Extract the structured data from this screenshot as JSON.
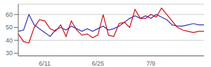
{
  "chart_data": {
    "type": "line",
    "categories": [
      null,
      null,
      null,
      null,
      null,
      "6/11",
      null,
      null,
      null,
      null,
      null,
      null,
      null,
      null,
      null,
      "6/25",
      null,
      null,
      null,
      null,
      null,
      null,
      null,
      null,
      null,
      "7/9",
      null,
      null,
      null,
      null,
      null,
      null,
      null,
      null,
      null,
      null
    ],
    "series": [
      {
        "color": "#3333bb",
        "values": [
          47,
          48,
          60,
          52,
          49,
          46,
          43,
          48,
          50,
          48,
          51,
          49,
          47,
          49,
          47,
          49,
          51,
          48,
          49,
          51,
          54,
          57,
          59,
          57,
          59,
          57,
          60,
          58,
          56,
          52,
          51,
          51,
          52,
          53,
          52,
          52
        ]
      },
      {
        "color": "#cc1111",
        "values": [
          45,
          39,
          38,
          50,
          56,
          55,
          49,
          47,
          52,
          43,
          55,
          48,
          44,
          45,
          42,
          44,
          60,
          44,
          43,
          53,
          54,
          50,
          64,
          57,
          57,
          60,
          58,
          65,
          60,
          55,
          50,
          48,
          47,
          46,
          47,
          47
        ]
      }
    ],
    "ylim": [
      28,
      68
    ],
    "yticks": [
      30,
      40,
      50,
      60
    ],
    "grid": "y"
  }
}
